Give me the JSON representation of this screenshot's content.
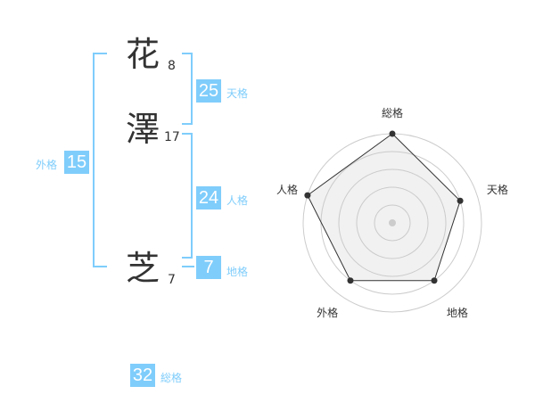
{
  "name": {
    "chars": [
      {
        "char": "花",
        "strokes": "8"
      },
      {
        "char": "澤",
        "strokes": "17"
      },
      {
        "char": "芝",
        "strokes": "7"
      }
    ]
  },
  "fortunes": {
    "tenkaku": {
      "value": "25",
      "label": "天格"
    },
    "jinkaku": {
      "value": "24",
      "label": "人格"
    },
    "chikaku": {
      "value": "7",
      "label": "地格"
    },
    "gaikaku": {
      "value": "15",
      "label": "外格"
    },
    "soukaku": {
      "value": "32",
      "label": "総格"
    }
  },
  "colors": {
    "accent": "#7fcdfb",
    "text": "#333333"
  },
  "chart_data": {
    "type": "radar",
    "axes": [
      "総格",
      "天格",
      "地格",
      "外格",
      "人格"
    ],
    "values": [
      5,
      4,
      4,
      4,
      5
    ],
    "range": [
      0,
      5
    ],
    "rings": 5
  }
}
